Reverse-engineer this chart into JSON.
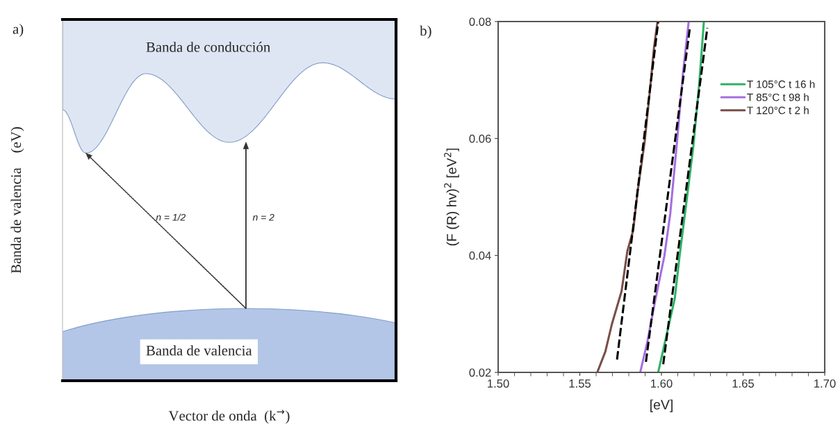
{
  "chart_data": [
    {
      "type": "other",
      "xlabel": "Vector de onda  (k$^{→}$)",
      "ylabel": "Banda de valencia    (eV)",
      "annotations": [
        "a)",
        "Banda de conducción",
        "Banda de valencia",
        "n = 1/2",
        "n = 2"
      ]
    },
    {
      "type": "line",
      "xlabel": "[eV]",
      "ylabel": "(F (R) hv)$^{2}$ [eV$^{2}$]",
      "annotations": [
        "b)"
      ],
      "xlim": [
        1.5,
        1.7
      ],
      "ylim": [
        0.02,
        0.08
      ],
      "xticks": [
        {
          "value": 1.5,
          "label": "1.50"
        },
        {
          "value": 1.55,
          "label": "1.55"
        },
        {
          "value": 1.6,
          "label": "1.60"
        },
        {
          "value": 1.65,
          "label": "1.65"
        },
        {
          "value": 1.7,
          "label": "1.70"
        }
      ],
      "yticks": [
        0.02,
        0.04,
        0.06,
        0.08
      ],
      "grid": false,
      "legend": "upper right",
      "series": [
        {
          "name": "T 105°C t 16 h",
          "color": "#2eb266",
          "line_style": "solid",
          "x": [
            1.598,
            1.6033,
            1.6082,
            1.6111,
            1.6153,
            1.6196,
            1.6231,
            1.626
          ],
          "values": [
            0.02,
            0.0266,
            0.0327,
            0.0399,
            0.0491,
            0.0588,
            0.0692,
            0.08
          ]
        },
        {
          "name": "T 85°C t 98 h",
          "color": "#a66ee0",
          "line_style": "solid",
          "x": [
            1.587,
            1.5912,
            1.5962,
            1.6018,
            1.6054,
            1.6096,
            1.6132,
            1.6167
          ],
          "values": [
            0.02,
            0.025,
            0.0323,
            0.0399,
            0.0471,
            0.0596,
            0.0712,
            0.08
          ]
        },
        {
          "name": "T 120°C t 2 h",
          "color": "#7a4e48",
          "line_style": "solid",
          "x": [
            1.5607,
            1.5657,
            1.5696,
            1.5756,
            1.5791,
            1.5827,
            1.5855,
            1.5898,
            1.5933,
            1.5955,
            1.5976
          ],
          "values": [
            0.02,
            0.0236,
            0.0282,
            0.0339,
            0.0407,
            0.0443,
            0.0511,
            0.0596,
            0.0692,
            0.0757,
            0.08
          ]
        },
        {
          "color": "#000000",
          "line_style": "dashed",
          "x": [
            1.5728,
            1.598
          ],
          "values": [
            0.0222,
            0.0799
          ]
        },
        {
          "color": "#000000",
          "line_style": "dashed",
          "x": [
            1.5905,
            1.6174
          ],
          "values": [
            0.0218,
            0.0789
          ]
        },
        {
          "color": "#000000",
          "line_style": "dashed",
          "x": [
            1.6011,
            1.6281
          ],
          "values": [
            0.0214,
            0.0789
          ]
        }
      ]
    }
  ]
}
